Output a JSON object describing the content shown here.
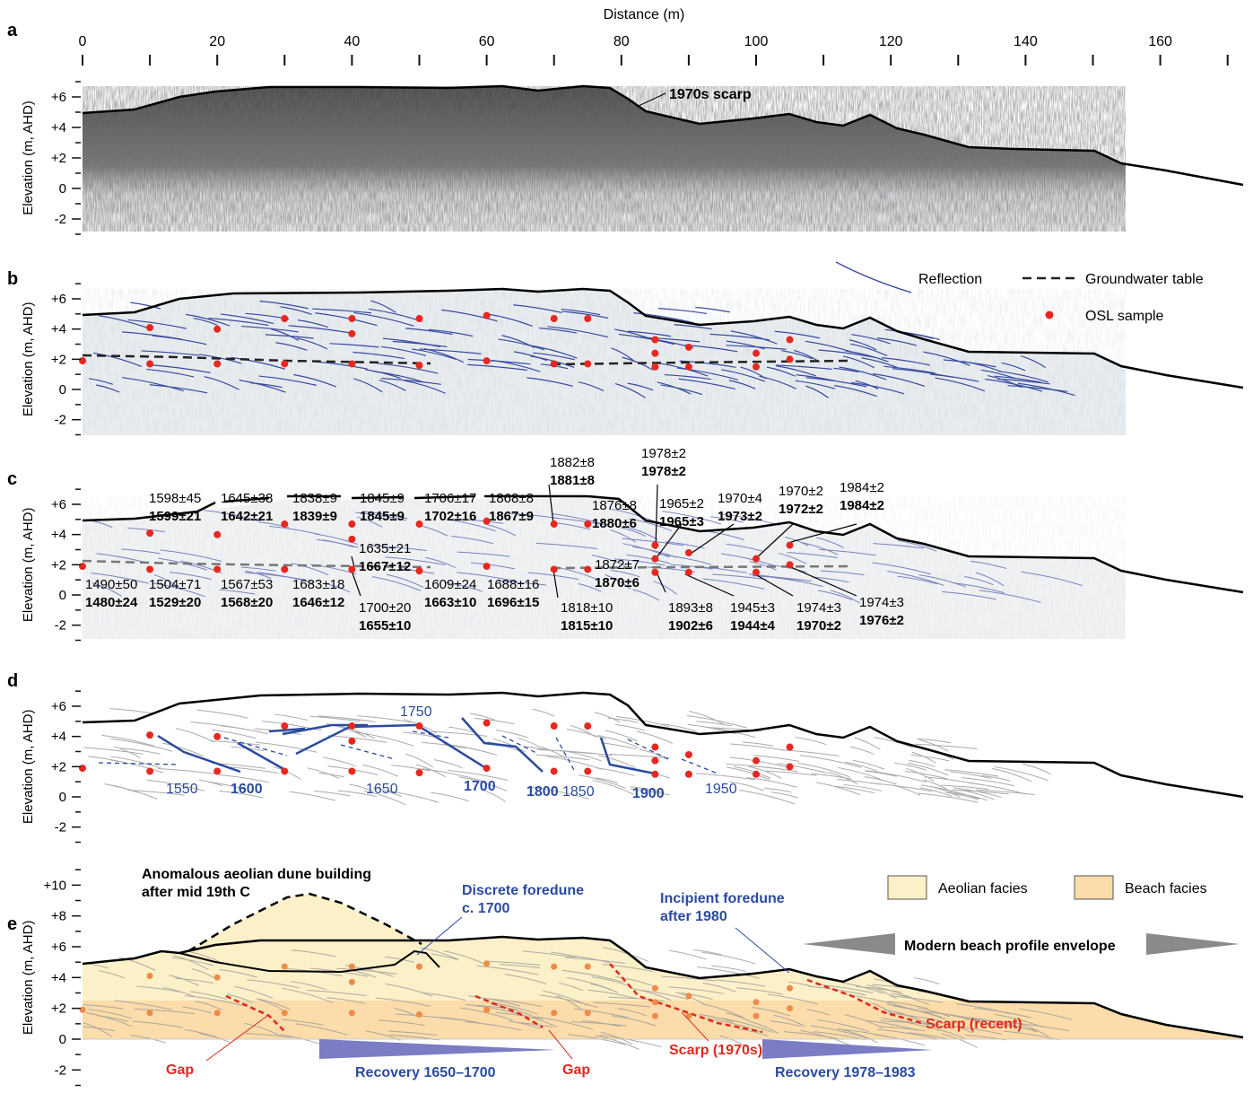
{
  "axis": {
    "top_title": "Distance (m)",
    "x_ticks": [
      "0",
      "20",
      "40",
      "60",
      "80",
      "100",
      "120",
      "140",
      "160"
    ],
    "y_title": "Elevation (m, AHD)",
    "y_ticks": [
      "+6",
      "+4",
      "+2",
      "0",
      "-2"
    ],
    "y_ticks_e": [
      "+10",
      "+8",
      "+6",
      "+4",
      "+2",
      "0",
      "-2"
    ]
  },
  "panels": {
    "a": {
      "letter": "a",
      "annotation": "1970s scarp"
    },
    "b": {
      "letter": "b",
      "legend": {
        "reflection": "Reflection",
        "groundwater": "Groundwater table",
        "osl": "OSL sample"
      }
    },
    "c": {
      "letter": "c"
    },
    "d": {
      "letter": "d",
      "isochrons": [
        "1550",
        "1600",
        "1650",
        "1700",
        "1750",
        "1800",
        "1850",
        "1900",
        "1950"
      ]
    },
    "e": {
      "letter": "e",
      "legend": {
        "aeolian": "Aeolian facies",
        "beach": "Beach facies"
      },
      "labels": {
        "anomalous_1": "Anomalous aeolian dune building",
        "anomalous_2": "after mid 19th C",
        "discrete_1": "Discrete foredune",
        "discrete_2": "c. 1700",
        "incipient_1": "Incipient foredune",
        "incipient_2": "after 1980",
        "envelope": "Modern beach profile envelope",
        "gap_left": "Gap",
        "gap_mid": "Gap",
        "recovery_1": "Recovery 1650–1700",
        "scarp_1970s": "Scarp (1970s)",
        "recovery_2": "Recovery 1978–1983",
        "scarp_recent": "Scarp (recent)"
      }
    }
  },
  "osl_ages": [
    {
      "a": "1598±45",
      "b": "1599±21"
    },
    {
      "a": "1645±38",
      "b": "1642±21"
    },
    {
      "a": "1838±9",
      "b": "1839±9"
    },
    {
      "a": "1845±9",
      "b": "1845±9"
    },
    {
      "a": "1706±17",
      "b": "1702±16"
    },
    {
      "a": "1868±8",
      "b": "1867±9"
    },
    {
      "a": "1882±8",
      "b": "1881±8"
    },
    {
      "a": "1876±8",
      "b": "1880±6"
    },
    {
      "a": "1978±2",
      "b": "1978±2"
    },
    {
      "a": "1965±2",
      "b": "1965±3"
    },
    {
      "a": "1970±4",
      "b": "1973±2"
    },
    {
      "a": "1970±2",
      "b": "1972±2"
    },
    {
      "a": "1984±2",
      "b": "1984±2"
    },
    {
      "a": "1635±21",
      "b": "1667±12"
    },
    {
      "a": "1872±7",
      "b": "1870±6"
    },
    {
      "a": "1490±50",
      "b": "1480±24"
    },
    {
      "a": "1504±71",
      "b": "1529±20"
    },
    {
      "a": "1567±53",
      "b": "1568±20"
    },
    {
      "a": "1683±18",
      "b": "1646±12"
    },
    {
      "a": "1700±20",
      "b": "1655±10"
    },
    {
      "a": "1609±24",
      "b": "1663±10"
    },
    {
      "a": "1688±16",
      "b": "1696±15"
    },
    {
      "a": "1818±10",
      "b": "1815±10"
    },
    {
      "a": "1893±8",
      "b": "1902±6"
    },
    {
      "a": "1945±3",
      "b": "1944±4"
    },
    {
      "a": "1974±3",
      "b": "1970±2"
    },
    {
      "a": "1974±3",
      "b": "1976±2"
    }
  ],
  "colors": {
    "osl": "#e8271e",
    "reflection": "#3a4a9e",
    "aeolian": "#fcf0c8",
    "beach": "#fbdcaa",
    "annot_blue": "#2b4aa0",
    "annot_red": "#e0281d",
    "arrow_blue": "#7a7dc4",
    "arrow_grey": "#8a8a8a"
  }
}
